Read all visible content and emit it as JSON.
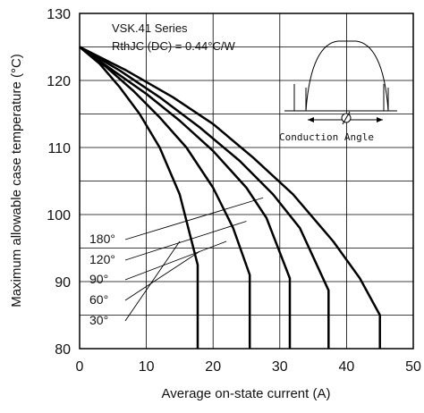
{
  "chart_data": {
    "type": "line",
    "title": "",
    "xlabel": "Average on-state current (A)",
    "ylabel": "Maximum allowable case temperature (°C)",
    "xlim": [
      0,
      50
    ],
    "ylim": [
      80,
      130
    ],
    "x_ticks": [
      "0",
      "10",
      "20",
      "30",
      "40",
      "50"
    ],
    "y_ticks": [
      "80",
      "90",
      "100",
      "110",
      "120",
      "130"
    ],
    "grid": true,
    "annotations": [
      "VSK.41 Series",
      "RthJC (DC) = 0.44°C/W"
    ],
    "inset_label": "Conduction Angle",
    "series": [
      {
        "name": "30°",
        "points": [
          [
            0,
            125
          ],
          [
            3,
            122.5
          ],
          [
            6,
            119
          ],
          [
            9,
            115
          ],
          [
            12,
            110
          ],
          [
            15,
            103
          ],
          [
            17.7,
            92.5
          ],
          [
            17.7,
            80
          ]
        ]
      },
      {
        "name": "60°",
        "points": [
          [
            0,
            125
          ],
          [
            4,
            122
          ],
          [
            8,
            118.5
          ],
          [
            12,
            114.5
          ],
          [
            16,
            110
          ],
          [
            20,
            104
          ],
          [
            23,
            98
          ],
          [
            25.5,
            91
          ],
          [
            25.5,
            80
          ]
        ]
      },
      {
        "name": "90°",
        "points": [
          [
            0,
            125
          ],
          [
            5,
            121.5
          ],
          [
            10,
            118
          ],
          [
            15,
            114
          ],
          [
            20,
            109.5
          ],
          [
            25,
            104
          ],
          [
            28,
            99.5
          ],
          [
            31.5,
            90.5
          ],
          [
            31.5,
            80
          ]
        ]
      },
      {
        "name": "120°",
        "points": [
          [
            0,
            125
          ],
          [
            6,
            121.5
          ],
          [
            12,
            117.5
          ],
          [
            18,
            113
          ],
          [
            24,
            108
          ],
          [
            29,
            103
          ],
          [
            33,
            98
          ],
          [
            37.3,
            88.7
          ],
          [
            37.3,
            80
          ]
        ]
      },
      {
        "name": "180°",
        "points": [
          [
            0,
            125
          ],
          [
            7,
            121.5
          ],
          [
            14,
            117.5
          ],
          [
            20,
            113.5
          ],
          [
            26,
            108.5
          ],
          [
            32,
            103
          ],
          [
            38,
            96
          ],
          [
            42,
            90.5
          ],
          [
            45,
            85
          ],
          [
            45,
            80
          ]
        ]
      }
    ]
  }
}
